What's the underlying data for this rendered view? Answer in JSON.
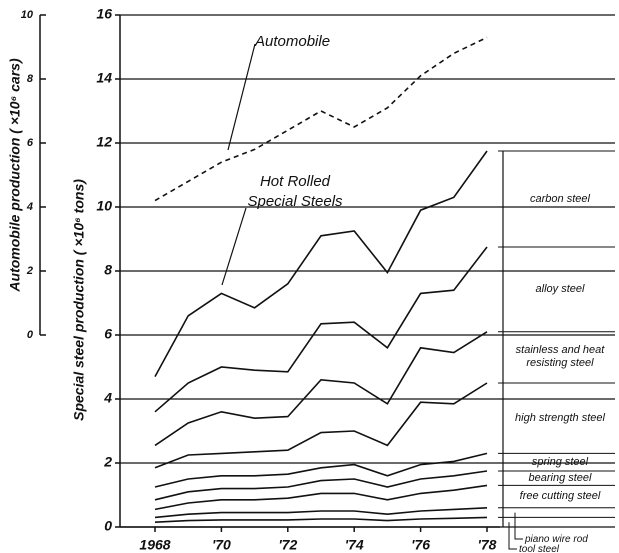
{
  "chart_data": {
    "type": "line",
    "y_label": "Special steel production ( ×10⁶ tons)",
    "y2_label": "Automobile production ( ×10⁶ cars)",
    "annotations": [
      "Automobile",
      "Hot Rolled Special Steels"
    ],
    "x": [
      1968,
      1969,
      1970,
      1971,
      1972,
      1973,
      1974,
      1975,
      1976,
      1977,
      1978
    ],
    "xlim": [
      1968,
      1978
    ],
    "xticks": [
      1968,
      {
        "value": 1970,
        "label": "'70"
      },
      {
        "value": 1972,
        "label": "'72"
      },
      {
        "value": 1974,
        "label": "'74"
      },
      {
        "value": 1976,
        "label": "'76"
      },
      {
        "value": 1978,
        "label": "'78"
      }
    ],
    "ylim": [
      0,
      16
    ],
    "yticks": [
      0,
      2,
      4,
      6,
      8,
      10,
      12,
      14,
      16
    ],
    "y2lim": [
      -6,
      10
    ],
    "y2ticks": [
      0,
      2,
      4,
      6,
      8,
      10
    ],
    "grid": true,
    "stacked": true,
    "series": [
      {
        "name": "tool steel",
        "color": "#111",
        "values": [
          0.15,
          0.2,
          0.22,
          0.22,
          0.22,
          0.25,
          0.25,
          0.2,
          0.25,
          0.27,
          0.3
        ]
      },
      {
        "name": "piano wire rod",
        "color": "#111",
        "values": [
          0.15,
          0.2,
          0.23,
          0.23,
          0.23,
          0.25,
          0.25,
          0.2,
          0.25,
          0.28,
          0.3
        ]
      },
      {
        "name": "free cutting steel",
        "color": "#111",
        "values": [
          0.25,
          0.35,
          0.4,
          0.4,
          0.45,
          0.55,
          0.55,
          0.45,
          0.55,
          0.6,
          0.7
        ]
      },
      {
        "name": "bearing steel",
        "color": "#111",
        "values": [
          0.3,
          0.35,
          0.35,
          0.35,
          0.35,
          0.4,
          0.45,
          0.4,
          0.45,
          0.45,
          0.45
        ]
      },
      {
        "name": "spring steel",
        "color": "#111",
        "values": [
          0.4,
          0.4,
          0.4,
          0.4,
          0.4,
          0.4,
          0.45,
          0.35,
          0.45,
          0.45,
          0.55
        ]
      },
      {
        "name": "high strength steel",
        "color": "#111",
        "values": [
          0.6,
          0.75,
          0.7,
          0.75,
          0.75,
          1.1,
          1.05,
          0.95,
          1.95,
          1.8,
          2.2
        ]
      },
      {
        "name": "stainless and heat resisting steel",
        "color": "#111",
        "values": [
          0.7,
          1.0,
          1.3,
          1.05,
          1.05,
          1.65,
          1.5,
          1.3,
          1.7,
          1.6,
          1.6
        ]
      },
      {
        "name": "alloy steel",
        "color": "#111",
        "values": [
          1.05,
          1.25,
          1.4,
          1.5,
          1.4,
          1.75,
          1.9,
          1.75,
          1.7,
          1.95,
          2.65
        ]
      },
      {
        "name": "carbon steel",
        "color": "#111",
        "values": [
          1.1,
          2.1,
          2.3,
          1.95,
          2.75,
          2.75,
          2.85,
          2.35,
          2.6,
          2.9,
          3.0
        ]
      }
    ],
    "y2_series": {
      "name": "Automobile",
      "color": "#111",
      "axis": "y2",
      "dashed": true,
      "values": [
        4.2,
        4.8,
        5.4,
        5.8,
        6.4,
        7.0,
        6.5,
        7.1,
        8.1,
        8.8,
        9.3
      ]
    }
  }
}
